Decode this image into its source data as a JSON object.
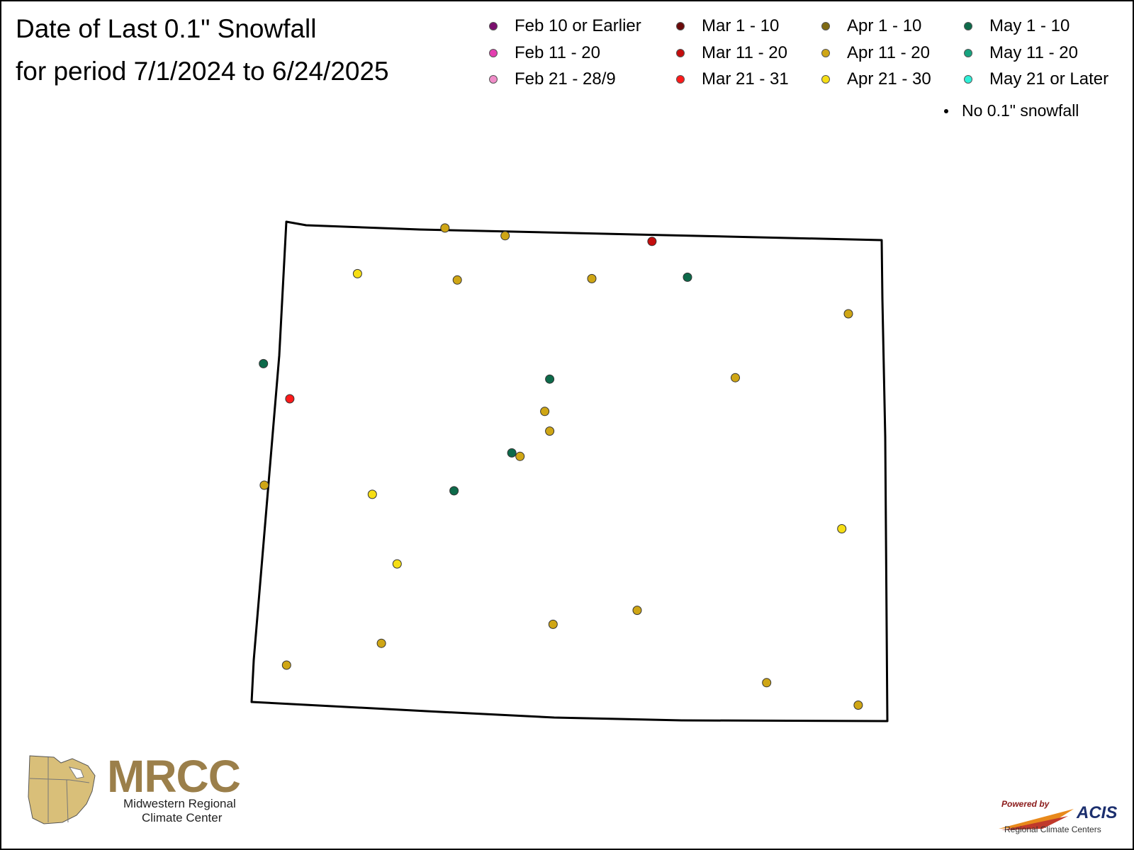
{
  "title": {
    "line1": "Date of Last 0.1\" Snowfall",
    "line2": "for period 7/1/2024 to 6/24/2025"
  },
  "legend": {
    "items": [
      {
        "label": "Feb 10 or Earlier",
        "color": "#7b0f6e"
      },
      {
        "label": "Feb 11 - 20",
        "color": "#e33fb0"
      },
      {
        "label": "Feb 21 - 28/9",
        "color": "#f08cc8"
      },
      {
        "label": "Mar 1 - 10",
        "color": "#6b0a0a"
      },
      {
        "label": "Mar 11 - 20",
        "color": "#c40d0d"
      },
      {
        "label": "Mar 21 - 31",
        "color": "#ff1a1a"
      },
      {
        "label": "Apr 1 - 10",
        "color": "#7f6a12"
      },
      {
        "label": "Apr 11 - 20",
        "color": "#cfa615"
      },
      {
        "label": "Apr 21 - 30",
        "color": "#f6de14"
      },
      {
        "label": "May 1 - 10",
        "color": "#0d6a4a"
      },
      {
        "label": "May 11 - 20",
        "color": "#17a37f"
      },
      {
        "label": "May 21 or Later",
        "color": "#2ff0d8"
      }
    ],
    "no_snowfall_label": "No 0.1\" snowfall"
  },
  "map": {
    "region": "Colorado",
    "stations": [
      {
        "lon": -106.93,
        "lat": 40.91,
        "category": "Apr 11 - 20"
      },
      {
        "lon": -106.2,
        "lat": 40.8,
        "category": "Apr 11 - 20"
      },
      {
        "lon": -104.42,
        "lat": 40.72,
        "category": "Mar 11 - 20"
      },
      {
        "lon": -107.99,
        "lat": 40.26,
        "category": "Apr 21 - 30"
      },
      {
        "lon": -106.78,
        "lat": 40.17,
        "category": "Apr 11 - 20"
      },
      {
        "lon": -105.15,
        "lat": 40.19,
        "category": "Apr 11 - 20"
      },
      {
        "lon": -103.99,
        "lat": 40.21,
        "category": "May 1 - 10"
      },
      {
        "lon": -102.04,
        "lat": 39.69,
        "category": "Apr 11 - 20"
      },
      {
        "lon": -109.13,
        "lat": 38.98,
        "category": "May 1 - 10"
      },
      {
        "lon": -108.81,
        "lat": 38.48,
        "category": "Mar 21 - 31"
      },
      {
        "lon": -105.66,
        "lat": 38.76,
        "category": "May 1 - 10"
      },
      {
        "lon": -103.41,
        "lat": 38.78,
        "category": "Apr 11 - 20"
      },
      {
        "lon": -105.72,
        "lat": 38.3,
        "category": "Apr 11 - 20"
      },
      {
        "lon": -105.66,
        "lat": 38.02,
        "category": "Apr 11 - 20"
      },
      {
        "lon": -106.12,
        "lat": 37.71,
        "category": "May 1 - 10"
      },
      {
        "lon": -106.02,
        "lat": 37.66,
        "category": "Apr 11 - 20"
      },
      {
        "lon": -109.12,
        "lat": 37.25,
        "category": "Apr 11 - 20"
      },
      {
        "lon": -107.81,
        "lat": 37.12,
        "category": "Apr 21 - 30"
      },
      {
        "lon": -106.82,
        "lat": 37.17,
        "category": "May 1 - 10"
      },
      {
        "lon": -102.12,
        "lat": 36.63,
        "category": "Apr 21 - 30"
      },
      {
        "lon": -107.51,
        "lat": 36.13,
        "category": "Apr 21 - 30"
      },
      {
        "lon": -104.6,
        "lat": 35.47,
        "category": "Apr 11 - 20"
      },
      {
        "lon": -105.62,
        "lat": 35.27,
        "category": "Apr 11 - 20"
      },
      {
        "lon": -107.7,
        "lat": 35.0,
        "category": "Apr 11 - 20"
      },
      {
        "lon": -108.85,
        "lat": 34.69,
        "category": "Apr 11 - 20"
      },
      {
        "lon": -103.03,
        "lat": 34.44,
        "category": "Apr 11 - 20"
      },
      {
        "lon": -101.92,
        "lat": 34.12,
        "category": "Apr 11 - 20"
      }
    ]
  },
  "logos": {
    "mrcc_name": "MRCC",
    "mrcc_subtitle_1": "Midwestern Regional",
    "mrcc_subtitle_2": "Climate Center",
    "acis_powered": "Powered by",
    "acis_name": "ACIS",
    "acis_subtitle": "Regional Climate Centers"
  }
}
